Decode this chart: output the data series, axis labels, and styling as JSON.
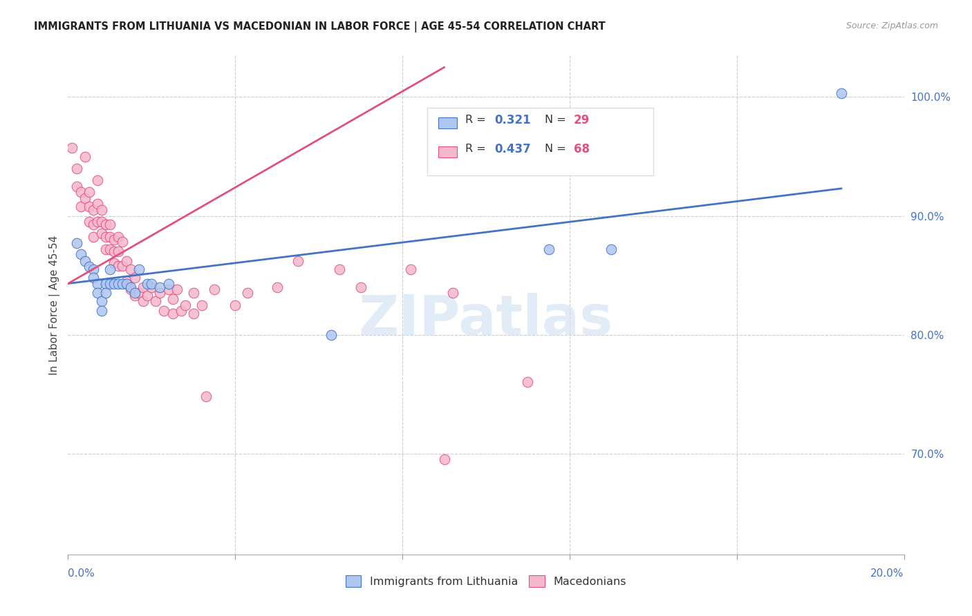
{
  "title": "IMMIGRANTS FROM LITHUANIA VS MACEDONIAN IN LABOR FORCE | AGE 45-54 CORRELATION CHART",
  "source": "Source: ZipAtlas.com",
  "ylabel": "In Labor Force | Age 45-54",
  "xmin": 0.0,
  "xmax": 0.2,
  "ymin": 0.615,
  "ymax": 1.035,
  "yticks_right": [
    0.7,
    0.8,
    0.9,
    1.0
  ],
  "ytick_labels_right": [
    "70.0%",
    "80.0%",
    "90.0%",
    "100.0%"
  ],
  "grid_color": "#cccccc",
  "background_color": "#ffffff",
  "lithuania_fill_color": "#aec6f0",
  "lithuania_edge_color": "#4472c4",
  "macedonian_fill_color": "#f5b8cc",
  "macedonian_edge_color": "#e05080",
  "R_lithuania": 0.321,
  "N_lithuania": 29,
  "R_macedonian": 0.437,
  "N_macedonian": 68,
  "lith_trend_x0": 0.0,
  "lith_trend_y0": 0.843,
  "lith_trend_x1": 0.185,
  "lith_trend_y1": 0.923,
  "mac_trend_x0": 0.0,
  "mac_trend_y0": 0.843,
  "mac_trend_x1": 0.09,
  "mac_trend_y1": 1.025,
  "legend_items": [
    "Immigrants from Lithuania",
    "Macedonians"
  ],
  "watermark_text": "ZIPatlas",
  "lith_x": [
    0.002,
    0.003,
    0.004,
    0.005,
    0.006,
    0.006,
    0.007,
    0.007,
    0.008,
    0.008,
    0.009,
    0.009,
    0.01,
    0.01,
    0.011,
    0.012,
    0.013,
    0.014,
    0.015,
    0.016,
    0.017,
    0.019,
    0.02,
    0.022,
    0.024,
    0.063,
    0.115,
    0.13,
    0.185
  ],
  "lith_y": [
    0.877,
    0.868,
    0.862,
    0.857,
    0.855,
    0.848,
    0.843,
    0.835,
    0.828,
    0.82,
    0.843,
    0.835,
    0.855,
    0.843,
    0.843,
    0.843,
    0.843,
    0.843,
    0.84,
    0.835,
    0.855,
    0.843,
    0.843,
    0.84,
    0.843,
    0.8,
    0.872,
    0.872,
    1.003
  ],
  "mac_x": [
    0.001,
    0.002,
    0.002,
    0.003,
    0.003,
    0.004,
    0.004,
    0.005,
    0.005,
    0.005,
    0.006,
    0.006,
    0.006,
    0.007,
    0.007,
    0.007,
    0.008,
    0.008,
    0.008,
    0.009,
    0.009,
    0.009,
    0.01,
    0.01,
    0.01,
    0.011,
    0.011,
    0.011,
    0.012,
    0.012,
    0.012,
    0.013,
    0.013,
    0.014,
    0.014,
    0.015,
    0.015,
    0.016,
    0.016,
    0.017,
    0.018,
    0.018,
    0.019,
    0.02,
    0.021,
    0.022,
    0.023,
    0.024,
    0.025,
    0.025,
    0.026,
    0.027,
    0.028,
    0.03,
    0.03,
    0.032,
    0.035,
    0.04,
    0.043,
    0.05,
    0.055,
    0.065,
    0.07,
    0.082,
    0.092,
    0.11,
    0.033,
    0.09
  ],
  "mac_y": [
    0.957,
    0.94,
    0.925,
    0.92,
    0.908,
    0.95,
    0.915,
    0.92,
    0.908,
    0.895,
    0.905,
    0.893,
    0.882,
    0.93,
    0.91,
    0.895,
    0.905,
    0.895,
    0.885,
    0.893,
    0.882,
    0.872,
    0.893,
    0.882,
    0.872,
    0.88,
    0.87,
    0.86,
    0.882,
    0.87,
    0.858,
    0.878,
    0.858,
    0.862,
    0.845,
    0.855,
    0.838,
    0.848,
    0.833,
    0.835,
    0.84,
    0.828,
    0.833,
    0.84,
    0.828,
    0.835,
    0.82,
    0.838,
    0.83,
    0.818,
    0.838,
    0.82,
    0.825,
    0.835,
    0.818,
    0.825,
    0.838,
    0.825,
    0.835,
    0.84,
    0.862,
    0.855,
    0.84,
    0.855,
    0.835,
    0.76,
    0.748,
    0.695
  ]
}
